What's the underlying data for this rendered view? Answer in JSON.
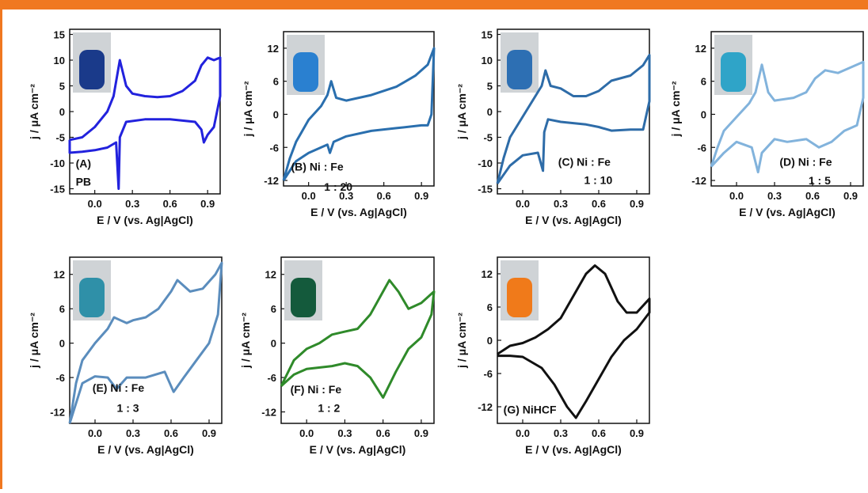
{
  "chart_data": [
    {
      "type": "line",
      "color": "#2222dd",
      "y_label": "j / μA cm⁻²",
      "x_label": "E / V (vs. Ag|AgCl)",
      "annotations": [
        "(A)",
        "PB"
      ],
      "xlim": [
        -0.2,
        1.0
      ],
      "ylim": [
        -16,
        16
      ],
      "xticks": [
        {
          "value": 0,
          "label": "0.0"
        },
        0.3,
        0.6,
        0.9
      ],
      "yticks": [
        -15,
        -10,
        -5,
        0,
        5,
        10,
        15
      ],
      "x": [
        -0.2,
        -0.1,
        0.0,
        0.1,
        0.15,
        0.2,
        0.25,
        0.3,
        0.4,
        0.5,
        0.6,
        0.7,
        0.8,
        0.85,
        0.9,
        0.95,
        1.0,
        1.0,
        0.95,
        0.9,
        0.87,
        0.85,
        0.8,
        0.6,
        0.4,
        0.25,
        0.2,
        0.19,
        0.17,
        0.1,
        0.0,
        -0.1,
        -0.2,
        -0.2
      ],
      "values": [
        -5.5,
        -5,
        -3,
        0,
        3,
        10,
        5,
        3.5,
        3,
        2.8,
        3,
        4,
        6,
        9,
        10.5,
        10,
        10.5,
        3,
        -3,
        -4.5,
        -6,
        -3.5,
        -2,
        -1.5,
        -1.5,
        -2,
        -5,
        -15,
        -6,
        -7,
        -7.5,
        -7.8,
        -8,
        -5.5
      ]
    },
    {
      "type": "line",
      "color": "#2a6fae",
      "y_label": "j / μA cm⁻²",
      "x_label": "E / V (vs. Ag|AgCl)",
      "annotations": [
        "(B) Ni : Fe",
        "1 : 20"
      ],
      "xlim": [
        -0.2,
        1.0
      ],
      "ylim": [
        -13,
        15
      ],
      "xticks": [
        {
          "value": 0,
          "label": "0.0"
        },
        0.3,
        0.6,
        0.9
      ],
      "yticks": [
        -12,
        -6,
        0,
        6,
        12
      ],
      "x": [
        -0.2,
        -0.15,
        -0.1,
        0.0,
        0.1,
        0.15,
        0.18,
        0.22,
        0.3,
        0.5,
        0.7,
        0.85,
        0.95,
        1.0,
        0.98,
        0.95,
        0.9,
        0.7,
        0.5,
        0.3,
        0.2,
        0.17,
        0.15,
        0.0,
        -0.1,
        -0.2
      ],
      "values": [
        -12,
        -8,
        -5,
        -1,
        1.5,
        3.5,
        6,
        3,
        2.5,
        3.5,
        5,
        7,
        9,
        12,
        0,
        -2,
        -2,
        -2.5,
        -3,
        -4,
        -5,
        -7,
        -5.5,
        -7,
        -8.5,
        -12
      ]
    },
    {
      "type": "line",
      "color": "#2e6ca8",
      "y_label": "j / μA cm⁻²",
      "x_label": "E / V (vs. Ag|AgCl)",
      "annotations": [
        "(C) Ni : Fe",
        "1 : 10"
      ],
      "xlim": [
        -0.2,
        1.0
      ],
      "ylim": [
        -16,
        16
      ],
      "xticks": [
        {
          "value": 0,
          "label": "0.0"
        },
        0.3,
        0.6,
        0.9
      ],
      "yticks": [
        -15,
        -10,
        -5,
        0,
        5,
        10,
        15
      ],
      "x": [
        -0.2,
        -0.15,
        -0.1,
        0.0,
        0.1,
        0.15,
        0.18,
        0.22,
        0.3,
        0.4,
        0.5,
        0.6,
        0.7,
        0.85,
        0.95,
        1.0,
        1.0,
        0.95,
        0.85,
        0.7,
        0.6,
        0.5,
        0.3,
        0.2,
        0.17,
        0.16,
        0.12,
        0.0,
        -0.1,
        -0.2
      ],
      "values": [
        -14,
        -9,
        -5,
        -1,
        3,
        5,
        8,
        5,
        4.5,
        3,
        3,
        4,
        6,
        7,
        9,
        11,
        2,
        -3.5,
        -3.5,
        -3.7,
        -3,
        -2.5,
        -2,
        -1.5,
        -4,
        -11.5,
        -8,
        -8.5,
        -10.5,
        -14
      ]
    },
    {
      "type": "line",
      "color": "#82b3dc",
      "y_label": "j / μA cm⁻²",
      "x_label": "E / V (vs. Ag|AgCl)",
      "annotations": [
        "(D) Ni : Fe",
        "1 : 5"
      ],
      "xlim": [
        -0.2,
        1.0
      ],
      "ylim": [
        -13,
        15
      ],
      "xticks": [
        {
          "value": 0,
          "label": "0.0"
        },
        0.3,
        0.6,
        0.9
      ],
      "yticks": [
        -12,
        -6,
        0,
        6,
        12
      ],
      "x": [
        -0.2,
        -0.15,
        -0.1,
        0.0,
        0.1,
        0.15,
        0.2,
        0.25,
        0.3,
        0.45,
        0.55,
        0.62,
        0.7,
        0.8,
        0.9,
        1.0,
        1.0,
        0.95,
        0.85,
        0.75,
        0.65,
        0.55,
        0.4,
        0.3,
        0.2,
        0.17,
        0.12,
        0.0,
        -0.1,
        -0.2
      ],
      "values": [
        -9.5,
        -6,
        -3,
        -0.5,
        2,
        4,
        9,
        4,
        2.5,
        3,
        4,
        6.5,
        8,
        7.5,
        8.5,
        9.5,
        3,
        -2,
        -3,
        -5,
        -6,
        -4.5,
        -5,
        -4.5,
        -7,
        -10.5,
        -6,
        -5,
        -7,
        -9.5
      ]
    },
    {
      "type": "line",
      "color": "#5b8dbd",
      "y_label": "j / μA cm⁻²",
      "x_label": "E / V (vs. Ag|AgCl)",
      "annotations": [
        "(E) Ni : Fe",
        "1 : 3"
      ],
      "xlim": [
        -0.2,
        1.0
      ],
      "ylim": [
        -14,
        15
      ],
      "xticks": [
        {
          "value": 0,
          "label": "0.0"
        },
        0.3,
        0.6,
        0.9
      ],
      "yticks": [
        -12,
        -6,
        0,
        6,
        12
      ],
      "x": [
        -0.2,
        -0.15,
        -0.1,
        0.0,
        0.1,
        0.15,
        0.2,
        0.25,
        0.3,
        0.4,
        0.5,
        0.6,
        0.65,
        0.75,
        0.85,
        0.95,
        1.0,
        0.97,
        0.9,
        0.8,
        0.7,
        0.62,
        0.55,
        0.4,
        0.25,
        0.17,
        0.1,
        0.0,
        -0.1,
        -0.2
      ],
      "values": [
        -14,
        -7,
        -3,
        0,
        2.5,
        4.5,
        4,
        3.5,
        4,
        4.5,
        6,
        9,
        11,
        9,
        9.5,
        12,
        14,
        5,
        0,
        -3,
        -6,
        -8.5,
        -5,
        -6,
        -6,
        -8,
        -6,
        -5.8,
        -7,
        -14
      ]
    },
    {
      "type": "line",
      "color": "#2f8a2a",
      "y_label": "j / μA cm⁻²",
      "x_label": "E / V (vs. Ag|AgCl)",
      "annotations": [
        "(F) Ni : Fe",
        "1 : 2"
      ],
      "xlim": [
        -0.2,
        1.0
      ],
      "ylim": [
        -14,
        15
      ],
      "xticks": [
        {
          "value": 0,
          "label": "0.0"
        },
        0.3,
        0.6,
        0.9
      ],
      "yticks": [
        -12,
        -6,
        0,
        6,
        12
      ],
      "x": [
        -0.2,
        -0.1,
        0.0,
        0.1,
        0.2,
        0.3,
        0.4,
        0.5,
        0.6,
        0.65,
        0.72,
        0.8,
        0.9,
        1.0,
        0.98,
        0.9,
        0.8,
        0.7,
        0.6,
        0.5,
        0.4,
        0.3,
        0.2,
        0.0,
        -0.1,
        -0.2
      ],
      "values": [
        -7.5,
        -3,
        -1,
        0,
        1.5,
        2,
        2.5,
        5,
        9,
        11,
        9,
        6,
        7,
        9,
        5,
        1,
        -1,
        -5,
        -9.5,
        -6,
        -4,
        -3.5,
        -4,
        -4.5,
        -5.5,
        -7.5
      ]
    },
    {
      "type": "line",
      "color": "#111111",
      "y_label": "j / μA cm⁻²",
      "x_label": "E / V (vs. Ag|AgCl)",
      "annotations": [
        "(G) NiHCF"
      ],
      "xlim": [
        -0.2,
        1.0
      ],
      "ylim": [
        -15,
        15
      ],
      "xticks": [
        {
          "value": 0,
          "label": "0.0"
        },
        0.3,
        0.6,
        0.9
      ],
      "yticks": [
        -12,
        -6,
        0,
        6,
        12
      ],
      "x": [
        -0.2,
        -0.1,
        0.0,
        0.1,
        0.2,
        0.3,
        0.4,
        0.5,
        0.57,
        0.65,
        0.75,
        0.82,
        0.9,
        1.0,
        1.0,
        0.9,
        0.8,
        0.7,
        0.6,
        0.5,
        0.42,
        0.35,
        0.25,
        0.15,
        0.0,
        -0.1,
        -0.2
      ],
      "values": [
        -2.5,
        -1,
        -0.5,
        0.5,
        2,
        4,
        8,
        12,
        13.5,
        12,
        7,
        5,
        5,
        7.5,
        5,
        2,
        0,
        -3,
        -7,
        -11,
        -14,
        -12,
        -8,
        -5,
        -3,
        -2.8,
        -2.8
      ]
    }
  ]
}
